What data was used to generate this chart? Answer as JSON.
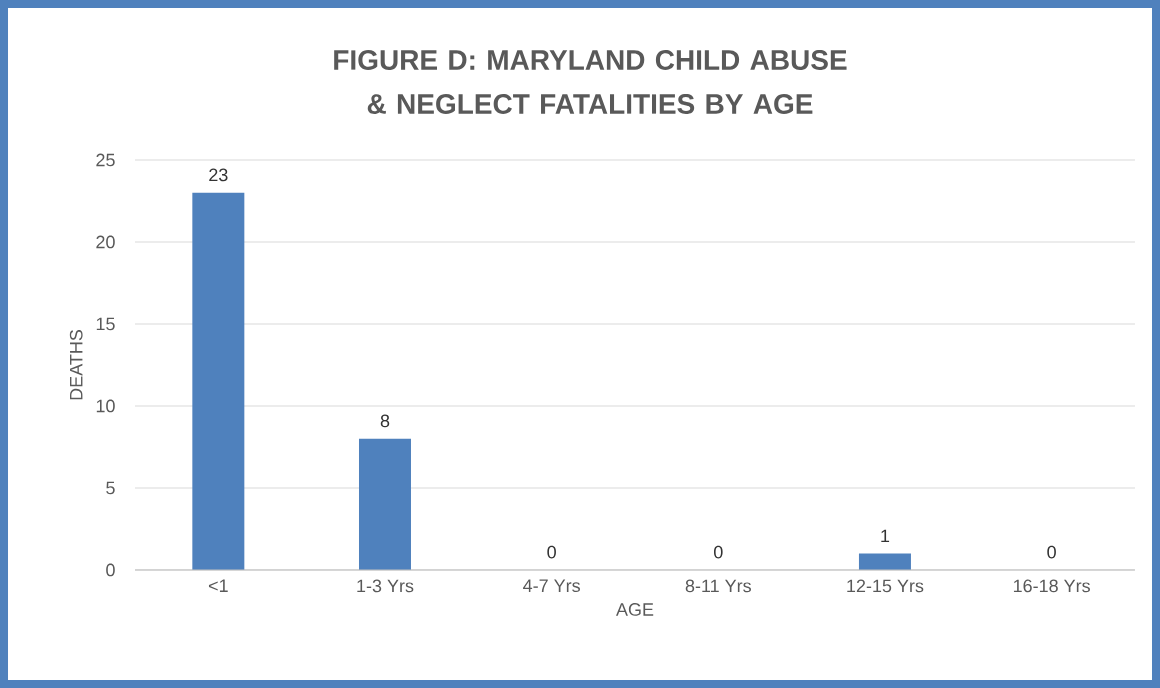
{
  "chart_data": {
    "type": "bar",
    "title": "FIGURE D:  MARYLAND CHILD ABUSE & NEGLECT FATALITIES BY AGE",
    "xlabel": "AGE",
    "ylabel": "DEATHS",
    "categories": [
      "<1",
      "1-3 Yrs",
      "4-7 Yrs",
      "8-11 Yrs",
      "12-15 Yrs",
      "16-18 Yrs"
    ],
    "values": [
      23,
      8,
      0,
      0,
      1,
      0
    ],
    "color": "#4f81bd",
    "ylim": [
      0,
      25
    ],
    "yticks": [
      0,
      5,
      10,
      15,
      20,
      25
    ],
    "grid": "y",
    "data_labels": true
  }
}
